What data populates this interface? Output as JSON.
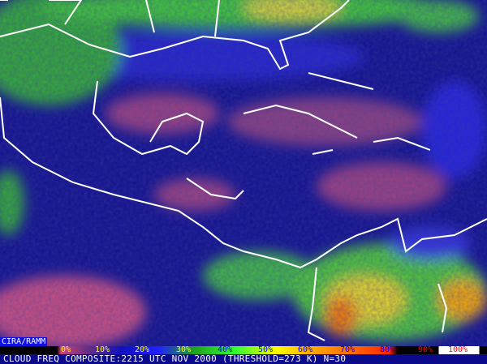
{
  "credit": "CIRA/RAMM",
  "legend": {
    "labels": [
      {
        "text": "0%",
        "color": "#ffff00"
      },
      {
        "text": "10%",
        "color": "#ffff00"
      },
      {
        "text": "20%",
        "color": "#ffff00"
      },
      {
        "text": "30%",
        "color": "#ffff00"
      },
      {
        "text": "40%",
        "color": "#0000ff"
      },
      {
        "text": "50%",
        "color": "#0000ff"
      },
      {
        "text": "60%",
        "color": "#0000ff"
      },
      {
        "text": "70%",
        "color": "#0000ff"
      },
      {
        "text": "80%",
        "color": "#0000ff"
      },
      {
        "text": "90%",
        "color": "#ff0000"
      },
      {
        "text": "100%",
        "color": "#ff0000"
      }
    ]
  },
  "caption": "CLOUD FREQ COMPOSITE:2215 UTC NOV 2000 (THRESHOLD=273 K) N=30"
}
